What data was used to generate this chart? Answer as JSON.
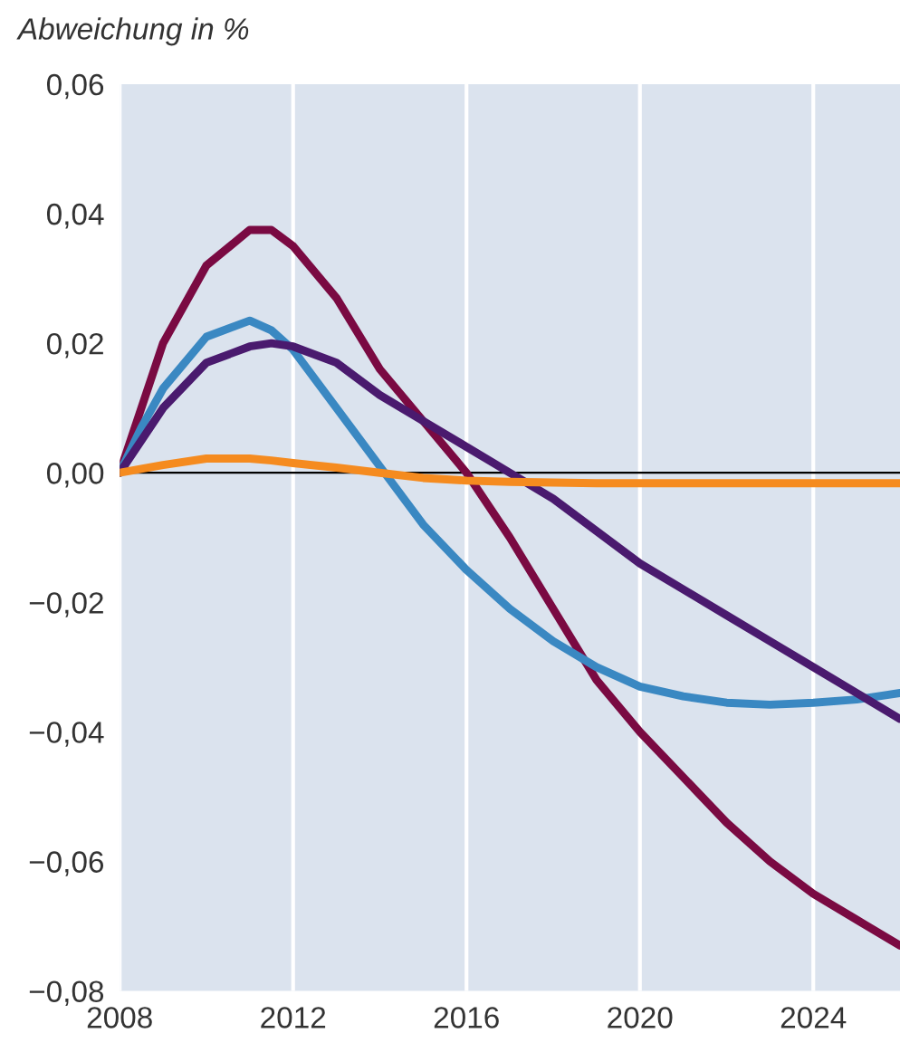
{
  "chart_data": {
    "type": "line",
    "ylabel": "Abweichung in %",
    "x": [
      2008,
      2008.5,
      2009,
      2010,
      2011,
      2011.5,
      2012,
      2013,
      2014,
      2015,
      2016,
      2017,
      2018,
      2019,
      2020,
      2021,
      2022,
      2023,
      2024,
      2025,
      2026
    ],
    "series": [
      {
        "color": "#7a0a42",
        "values": [
          0,
          0.01,
          0.02,
          0.032,
          0.0375,
          0.0375,
          0.035,
          0.027,
          0.016,
          0.008,
          0.0,
          -0.01,
          -0.021,
          -0.032,
          -0.04,
          -0.047,
          -0.054,
          -0.06,
          -0.065,
          -0.069,
          -0.073
        ]
      },
      {
        "color": "#3a88c2",
        "values": [
          0,
          0.007,
          0.013,
          0.021,
          0.0235,
          0.022,
          0.019,
          0.01,
          0.001,
          -0.008,
          -0.015,
          -0.021,
          -0.026,
          -0.03,
          -0.033,
          -0.0345,
          -0.0355,
          -0.0358,
          -0.0355,
          -0.035,
          -0.034
        ]
      },
      {
        "color": "#4a1a6e",
        "values": [
          0,
          0.005,
          0.01,
          0.017,
          0.0195,
          0.02,
          0.0195,
          0.017,
          0.012,
          0.008,
          0.004,
          0,
          -0.004,
          -0.009,
          -0.014,
          -0.018,
          -0.022,
          -0.026,
          -0.03,
          -0.034,
          -0.038
        ]
      },
      {
        "color": "#f58b1f",
        "values": [
          0,
          0.0006,
          0.0012,
          0.0022,
          0.0022,
          0.0019,
          0.0015,
          0.0008,
          0,
          -0.0008,
          -0.0012,
          -0.0014,
          -0.0015,
          -0.0016,
          -0.0016,
          -0.0016,
          -0.0016,
          -0.0016,
          -0.0016,
          -0.0016,
          -0.0016
        ]
      }
    ],
    "xlim": [
      2008,
      2026
    ],
    "xticks": [
      2008,
      2012,
      2016,
      2020,
      2024
    ],
    "ylim": [
      -0.08,
      0.06
    ],
    "yticks": [
      {
        "value": 0.06,
        "label": "0,06"
      },
      {
        "value": 0.04,
        "label": "0,04"
      },
      {
        "value": 0.02,
        "label": "0,02"
      },
      {
        "value": 0,
        "label": "0,00"
      },
      {
        "value": -0.02,
        "label": "−0,02"
      },
      {
        "value": -0.04,
        "label": "−0,04"
      },
      {
        "value": -0.06,
        "label": "−0,06"
      },
      {
        "value": -0.08,
        "label": "−0,08"
      }
    ],
    "grid": "x",
    "ref_lines": [
      {
        "axis": "y",
        "value": 0,
        "color": "#000000"
      }
    ]
  }
}
